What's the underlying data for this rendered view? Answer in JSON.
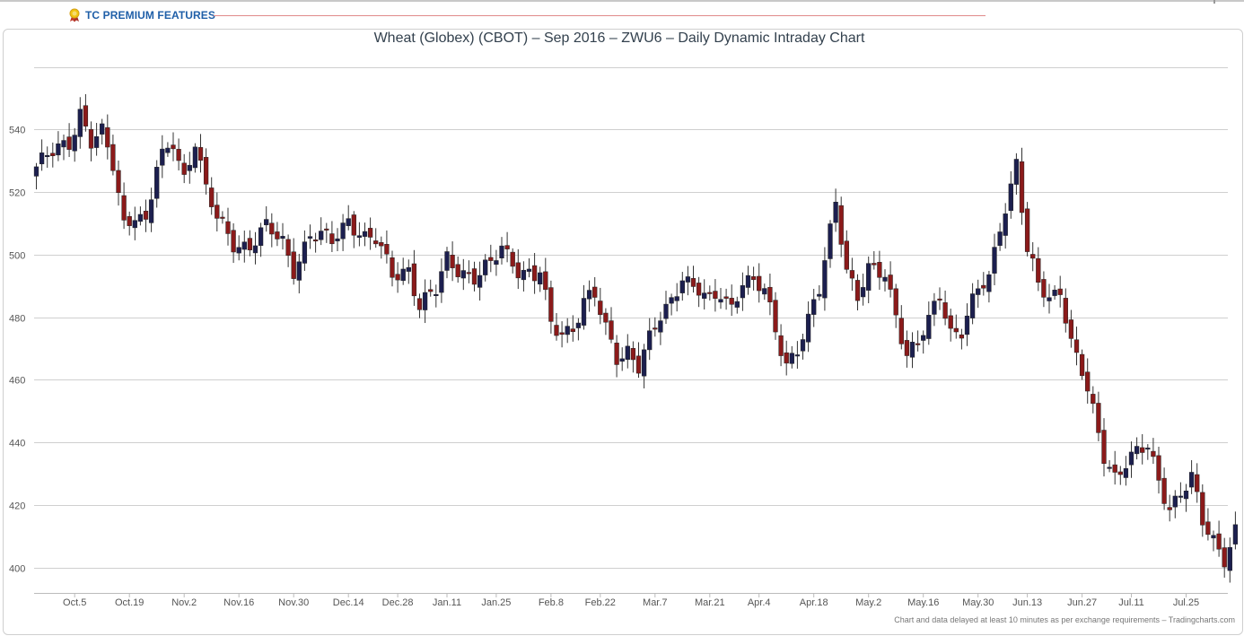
{
  "header": {
    "premium_label": "TC PREMIUM FEATURES",
    "medal_icon": "medal-icon"
  },
  "footer": {
    "credits": "Chart and data delayed at least 10 minutes as per exchange requirements – Tradingcharts.com"
  },
  "colors": {
    "up": "#1c1f4f",
    "down": "#8b1a1a",
    "grid": "#cfcfcf",
    "title": "#33414e"
  },
  "chart_data": {
    "type": "candlestick",
    "title": "Wheat (Globex) (CBOT) – Sep 2016 – ZWU6 – Daily Dynamic Intraday Chart",
    "xlabel": "",
    "ylabel": "",
    "ylim": [
      396,
      556
    ],
    "y_ticks": [
      400,
      420,
      440,
      460,
      480,
      500,
      520,
      540
    ],
    "x_ticks": [
      {
        "label": "Oct.5",
        "index": 7
      },
      {
        "label": "Oct.19",
        "index": 17
      },
      {
        "label": "Nov.2",
        "index": 27
      },
      {
        "label": "Nov.16",
        "index": 37
      },
      {
        "label": "Nov.30",
        "index": 47
      },
      {
        "label": "Dec.14",
        "index": 57
      },
      {
        "label": "Dec.28",
        "index": 66
      },
      {
        "label": "Jan.11",
        "index": 75
      },
      {
        "label": "Jan.25",
        "index": 84
      },
      {
        "label": "Feb.8",
        "index": 94
      },
      {
        "label": "Feb.22",
        "index": 103
      },
      {
        "label": "Mar.7",
        "index": 113
      },
      {
        "label": "Mar.21",
        "index": 123
      },
      {
        "label": "Apr.4",
        "index": 132
      },
      {
        "label": "Apr.18",
        "index": 142
      },
      {
        "label": "May.2",
        "index": 152
      },
      {
        "label": "May.16",
        "index": 162
      },
      {
        "label": "May.30",
        "index": 172
      },
      {
        "label": "Jun.13",
        "index": 181
      },
      {
        "label": "Jun.27",
        "index": 191
      },
      {
        "label": "Jul.11",
        "index": 200
      },
      {
        "label": "Jul.25",
        "index": 210
      }
    ],
    "grid": true,
    "legend": "none",
    "anchors": [
      [
        0,
        528
      ],
      [
        3,
        532
      ],
      [
        6,
        536
      ],
      [
        8,
        546
      ],
      [
        10,
        536
      ],
      [
        12,
        538
      ],
      [
        14,
        528
      ],
      [
        16,
        510
      ],
      [
        18,
        514
      ],
      [
        20,
        510
      ],
      [
        22,
        527
      ],
      [
        25,
        536
      ],
      [
        27,
        525
      ],
      [
        29,
        537
      ],
      [
        31,
        520
      ],
      [
        33,
        511
      ],
      [
        36,
        504
      ],
      [
        39,
        503
      ],
      [
        42,
        508
      ],
      [
        45,
        504
      ],
      [
        47,
        496
      ],
      [
        50,
        506
      ],
      [
        54,
        504
      ],
      [
        57,
        512
      ],
      [
        60,
        505
      ],
      [
        62,
        504
      ],
      [
        65,
        494
      ],
      [
        68,
        496
      ],
      [
        70,
        483
      ],
      [
        73,
        488
      ],
      [
        75,
        499
      ],
      [
        78,
        495
      ],
      [
        80,
        492
      ],
      [
        83,
        496
      ],
      [
        85,
        503
      ],
      [
        88,
        496
      ],
      [
        91,
        492
      ],
      [
        92,
        494
      ],
      [
        94,
        477
      ],
      [
        96,
        476
      ],
      [
        98,
        477
      ],
      [
        100,
        485
      ],
      [
        102,
        486
      ],
      [
        104,
        476
      ],
      [
        106,
        468
      ],
      [
        108,
        470
      ],
      [
        110,
        464
      ],
      [
        112,
        472
      ],
      [
        114,
        480
      ],
      [
        116,
        486
      ],
      [
        118,
        494
      ],
      [
        120,
        489
      ],
      [
        121,
        488
      ],
      [
        123,
        484
      ],
      [
        125,
        488
      ],
      [
        127,
        484
      ],
      [
        129,
        492
      ],
      [
        131,
        490
      ],
      [
        133,
        488
      ],
      [
        135,
        476
      ],
      [
        137,
        466
      ],
      [
        139,
        470
      ],
      [
        141,
        478
      ],
      [
        143,
        488
      ],
      [
        145,
        508
      ],
      [
        146,
        518
      ],
      [
        148,
        496
      ],
      [
        150,
        486
      ],
      [
        152,
        494
      ],
      [
        155,
        494
      ],
      [
        157,
        482
      ],
      [
        159,
        468
      ],
      [
        161,
        471
      ],
      [
        163,
        478
      ],
      [
        165,
        488
      ],
      [
        167,
        476
      ],
      [
        169,
        476
      ],
      [
        170,
        480
      ],
      [
        172,
        488
      ],
      [
        174,
        492
      ],
      [
        176,
        510
      ],
      [
        178,
        522
      ],
      [
        179,
        530
      ],
      [
        181,
        500
      ],
      [
        183,
        490
      ],
      [
        185,
        486
      ],
      [
        187,
        490
      ],
      [
        189,
        472
      ],
      [
        191,
        462
      ],
      [
        193,
        449
      ],
      [
        195,
        436
      ],
      [
        197,
        430
      ],
      [
        199,
        434
      ],
      [
        201,
        436
      ],
      [
        203,
        438
      ],
      [
        205,
        428
      ],
      [
        207,
        420
      ],
      [
        209,
        424
      ],
      [
        211,
        428
      ],
      [
        213,
        414
      ],
      [
        215,
        409
      ],
      [
        217,
        404
      ],
      [
        219,
        412
      ]
    ]
  }
}
